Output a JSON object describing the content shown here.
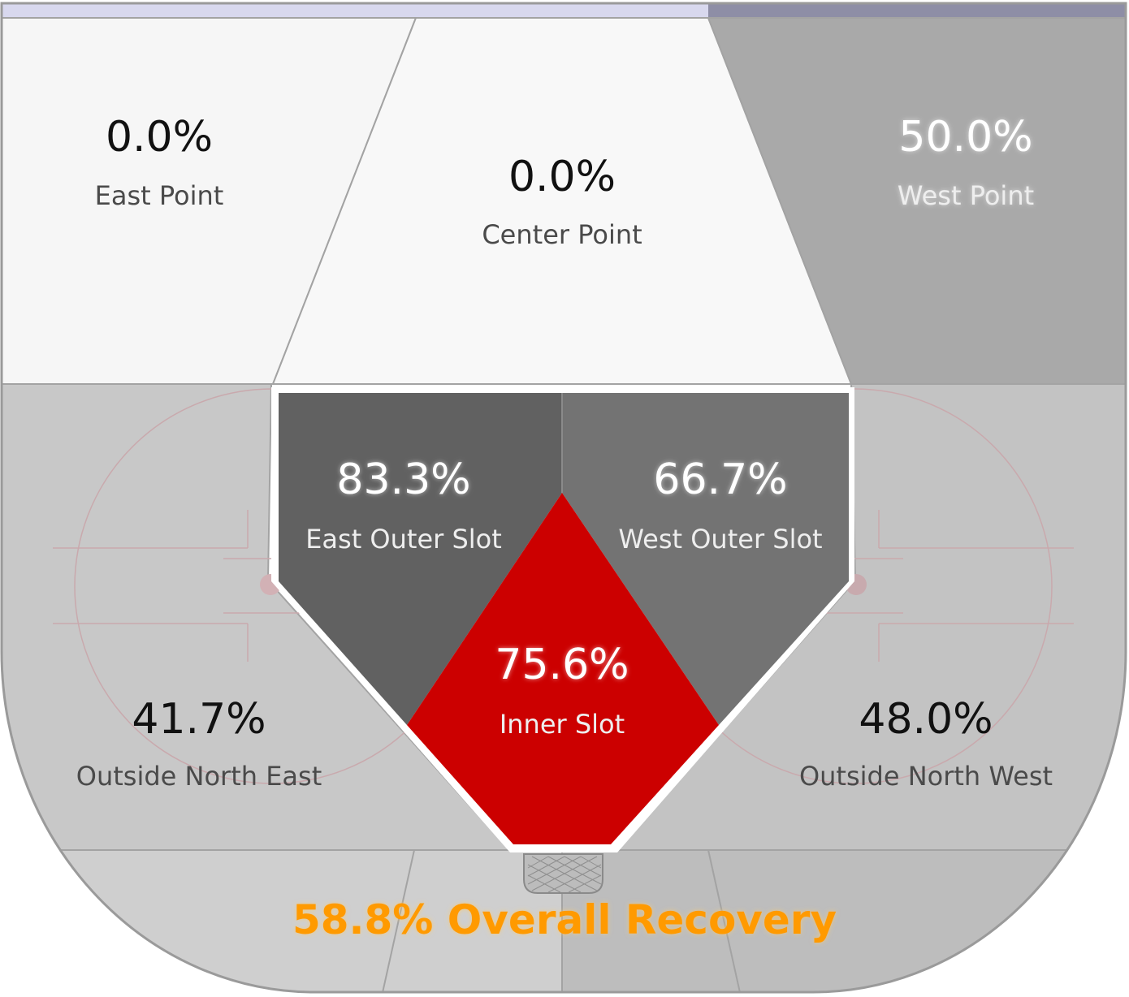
{
  "colors": {
    "cold": "#f6f6f6",
    "mild": "#c8c8c8",
    "warm": "#a9a9a9",
    "slot_dark": "#616161",
    "slot_mid": "#737373",
    "hot": "#cc0000",
    "overall_text": "#ff9a00",
    "top_bar_left": "#d8d8ee",
    "top_bar_right": "#8e8ea6"
  },
  "zones": {
    "east_point": {
      "pct": "0.0%",
      "label": "East Point"
    },
    "center_point": {
      "pct": "0.0%",
      "label": "Center Point"
    },
    "west_point": {
      "pct": "50.0%",
      "label": "West Point"
    },
    "east_outer_slot": {
      "pct": "83.3%",
      "label": "East Outer Slot"
    },
    "west_outer_slot": {
      "pct": "66.7%",
      "label": "West Outer Slot"
    },
    "inner_slot": {
      "pct": "75.6%",
      "label": "Inner Slot"
    },
    "outside_north_east": {
      "pct": "41.7%",
      "label": "Outside North East"
    },
    "outside_north_west": {
      "pct": "48.0%",
      "label": "Outside North West"
    }
  },
  "overall": {
    "text": "58.8% Overall Recovery"
  }
}
